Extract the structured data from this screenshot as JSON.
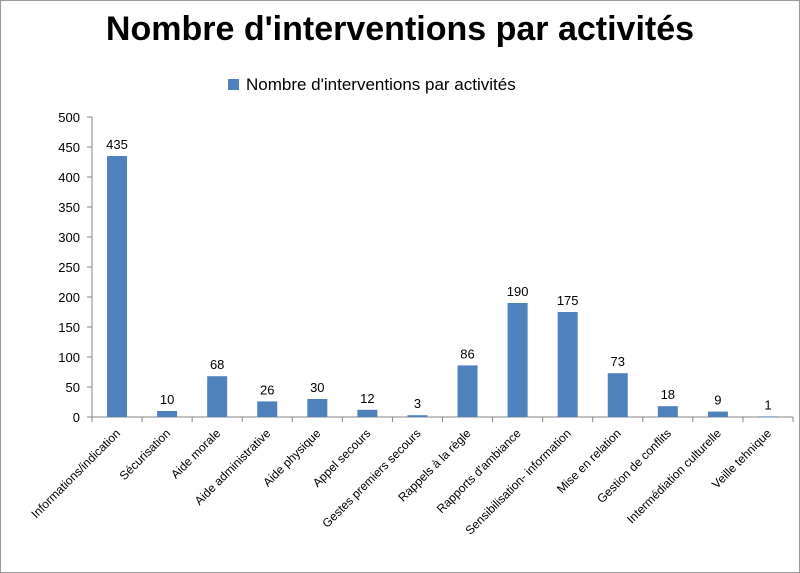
{
  "chart_data": {
    "type": "bar",
    "title": "Nombre d'interventions par activités",
    "categories": [
      "Informations/indication",
      "Sécurisation",
      "Aide morale",
      "Aide administrative",
      "Aide physique",
      "Appel secours",
      "Gestes premiers secours",
      "Rappels à la règle",
      "Rapports d'ambiance",
      "Sensibilisation- information",
      "Mise en relation",
      "Gestion de conflits",
      "Intermédiation culturelle",
      "Veille tehnique"
    ],
    "series": [
      {
        "name": "Nombre d'interventions par activités",
        "values": [
          435,
          10,
          68,
          26,
          30,
          12,
          3,
          86,
          190,
          175,
          73,
          18,
          9,
          1
        ],
        "color": "#4f81bd"
      }
    ],
    "ylim": [
      0,
      500
    ],
    "yticks": [
      0,
      50,
      100,
      150,
      200,
      250,
      300,
      350,
      400,
      450,
      500
    ],
    "legend": "top",
    "grid": false,
    "data_labels": true
  }
}
